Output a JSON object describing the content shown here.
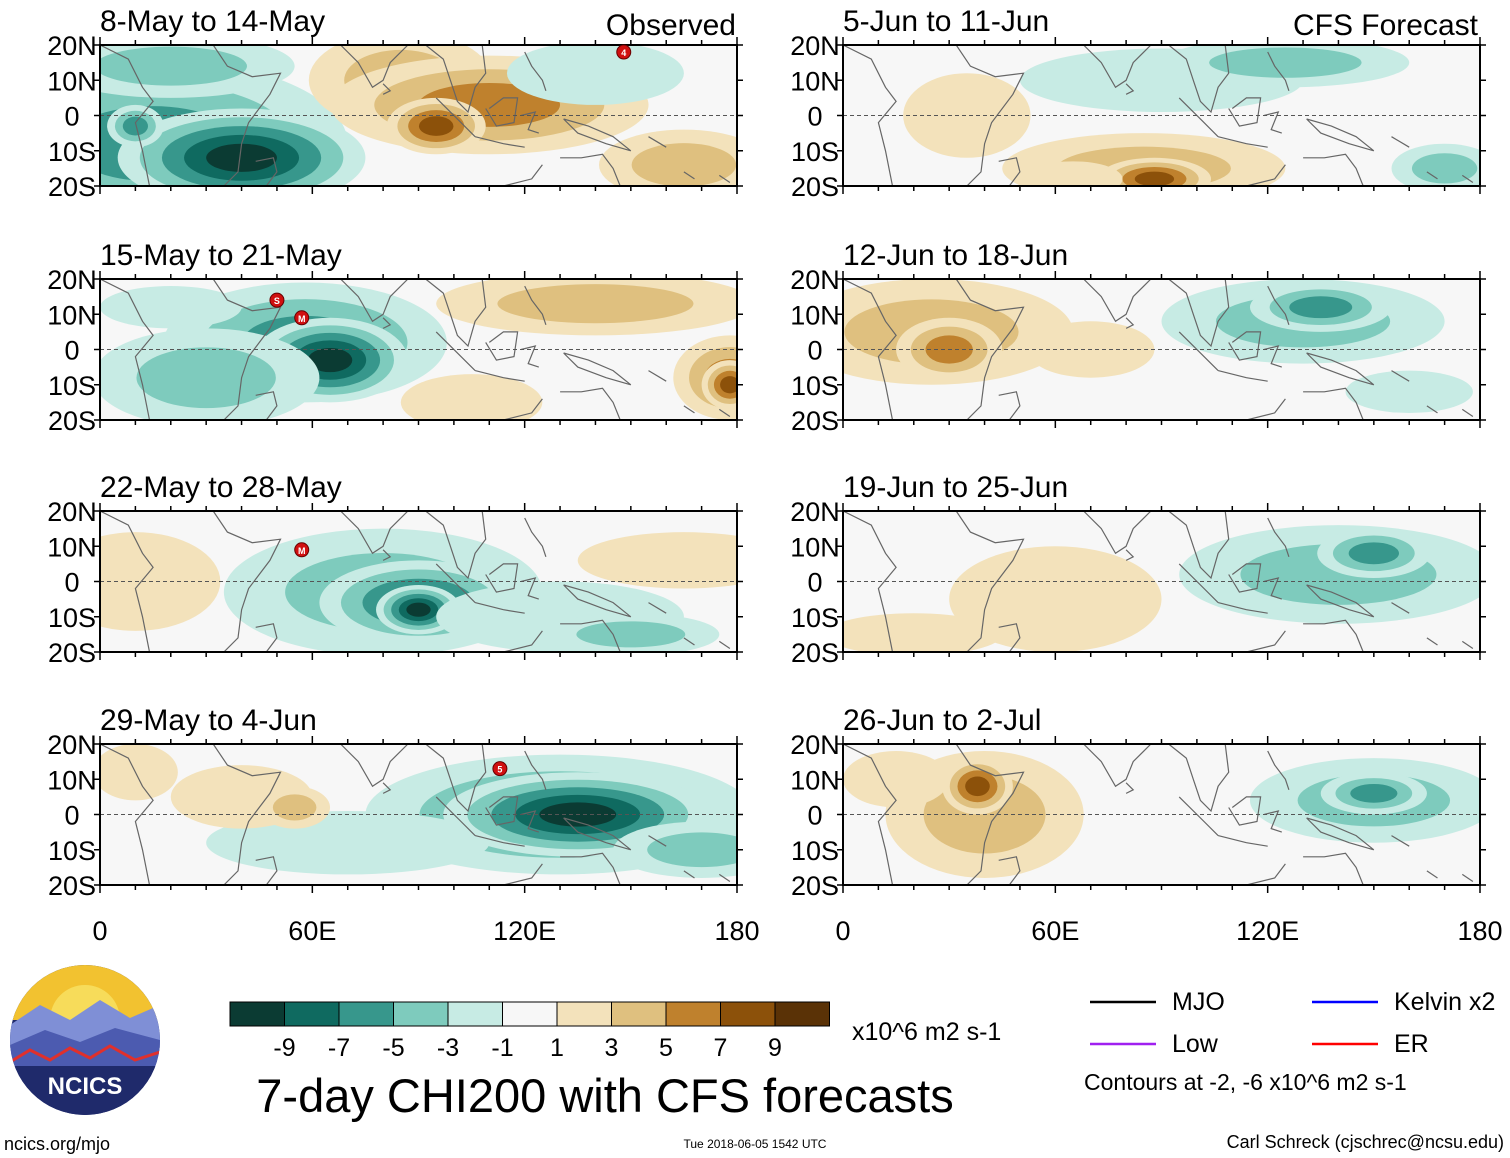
{
  "figure": {
    "title": "7-day CHI200 with CFS forecasts",
    "units": "x10^6 m2 s-1",
    "source_link": "ncics.org/mjo",
    "timestamp": "Tue 2018-06-05 1542 UTC",
    "author": "Carl Schreck (cjschrec@ncsu.edu)",
    "logo_text": "NCICS"
  },
  "headers": {
    "observed": "Observed",
    "forecast": "CFS Forecast"
  },
  "axes": {
    "lat_labels": [
      "20N",
      "10N",
      "0",
      "10S",
      "20S"
    ],
    "lon_labels": [
      "0",
      "60E",
      "120E",
      "180"
    ]
  },
  "colorbar": {
    "colors": [
      "#0b3b33",
      "#0f6a60",
      "#37978c",
      "#7ecbbd",
      "#c7ebe4",
      "#f7f7f7",
      "#f3e2bb",
      "#dfc07f",
      "#bf812d",
      "#8c510a",
      "#5a3206"
    ],
    "labels": [
      "-9",
      "-7",
      "-5",
      "-3",
      "-1",
      "1",
      "3",
      "5",
      "7",
      "9"
    ]
  },
  "legend": {
    "items": [
      {
        "label": "MJO",
        "color": "#000000"
      },
      {
        "label": "Kelvin x2",
        "color": "#0000ff"
      },
      {
        "label": "Low",
        "color": "#a020f0"
      },
      {
        "label": "ER",
        "color": "#ff0000"
      }
    ],
    "note": "Contours at -2, -6 x10^6 m2 s-1"
  },
  "panels": [
    {
      "id": "obs-1",
      "column": "observed",
      "row": 0,
      "label": "8-May to 14-May",
      "markers": [
        {
          "text": "4",
          "lon": 148,
          "lat": 18
        }
      ],
      "blobs": [
        [
          15,
          -8,
          55,
          24,
          -6
        ],
        [
          40,
          -12,
          35,
          14,
          -9
        ],
        [
          20,
          14,
          35,
          9,
          -3
        ],
        [
          85,
          10,
          26,
          14,
          4
        ],
        [
          110,
          3,
          45,
          14,
          5
        ],
        [
          95,
          -3,
          14,
          8,
          7
        ],
        [
          165,
          -14,
          24,
          10,
          3
        ],
        [
          140,
          12,
          25,
          9,
          -2
        ],
        [
          10,
          -3,
          8,
          6,
          -6
        ]
      ]
    },
    {
      "id": "obs-2",
      "column": "observed",
      "row": 1,
      "label": "15-May to 21-May",
      "markers": [
        {
          "text": "S",
          "lon": 50,
          "lat": 14
        },
        {
          "text": "M",
          "lon": 57,
          "lat": 9
        }
      ],
      "blobs": [
        [
          58,
          2,
          40,
          17,
          -5
        ],
        [
          65,
          -3,
          22,
          12,
          -9
        ],
        [
          30,
          -8,
          32,
          14,
          -3
        ],
        [
          140,
          13,
          45,
          9,
          3
        ],
        [
          178,
          -8,
          16,
          12,
          5
        ],
        [
          178,
          -10,
          8,
          7,
          7
        ],
        [
          20,
          12,
          20,
          6,
          -1
        ],
        [
          105,
          -15,
          20,
          8,
          2
        ]
      ]
    },
    {
      "id": "obs-3",
      "column": "observed",
      "row": 2,
      "label": "22-May to 28-May",
      "markers": [
        {
          "text": "M",
          "lon": 57,
          "lat": 9
        }
      ],
      "blobs": [
        [
          80,
          -3,
          45,
          18,
          -4
        ],
        [
          90,
          -6,
          28,
          12,
          -7
        ],
        [
          90,
          -8,
          12,
          7,
          -9
        ],
        [
          130,
          -10,
          35,
          10,
          -2
        ],
        [
          10,
          0,
          24,
          14,
          2
        ],
        [
          165,
          6,
          30,
          8,
          2
        ],
        [
          150,
          -15,
          25,
          6,
          -3
        ]
      ]
    },
    {
      "id": "obs-4",
      "column": "observed",
      "row": 3,
      "label": "29-May to 4-Jun",
      "markers": [
        {
          "text": "5",
          "lon": 113,
          "lat": 13
        }
      ],
      "blobs": [
        [
          130,
          0,
          55,
          17,
          -6
        ],
        [
          135,
          0,
          38,
          12,
          -9
        ],
        [
          70,
          -8,
          40,
          9,
          -2
        ],
        [
          40,
          5,
          20,
          9,
          2
        ],
        [
          55,
          2,
          10,
          6,
          4
        ],
        [
          10,
          12,
          12,
          8,
          2
        ],
        [
          170,
          -10,
          25,
          8,
          -3
        ]
      ]
    },
    {
      "id": "fcst-1",
      "column": "forecast",
      "row": 0,
      "label": "5-Jun to 11-Jun",
      "markers": [],
      "blobs": [
        [
          85,
          -15,
          40,
          10,
          4
        ],
        [
          88,
          -18,
          16,
          6,
          7
        ],
        [
          35,
          0,
          18,
          12,
          2
        ],
        [
          90,
          10,
          40,
          9,
          -2
        ],
        [
          125,
          15,
          35,
          7,
          -4
        ],
        [
          65,
          -18,
          14,
          5,
          2
        ],
        [
          170,
          -15,
          15,
          7,
          -3
        ]
      ]
    },
    {
      "id": "fcst-2",
      "column": "forecast",
      "row": 1,
      "label": "12-Jun to 18-Jun",
      "markers": [],
      "blobs": [
        [
          25,
          5,
          40,
          15,
          3
        ],
        [
          30,
          0,
          15,
          9,
          5
        ],
        [
          130,
          8,
          40,
          12,
          -3
        ],
        [
          135,
          12,
          20,
          7,
          -6
        ],
        [
          70,
          0,
          18,
          8,
          2
        ],
        [
          160,
          -12,
          18,
          6,
          -2
        ]
      ]
    },
    {
      "id": "fcst-3",
      "column": "forecast",
      "row": 2,
      "label": "19-Jun to 25-Jun",
      "markers": [],
      "blobs": [
        [
          60,
          -5,
          30,
          15,
          2
        ],
        [
          140,
          2,
          45,
          14,
          -3
        ],
        [
          150,
          8,
          16,
          7,
          -6
        ],
        [
          20,
          -15,
          25,
          6,
          2
        ]
      ]
    },
    {
      "id": "fcst-4",
      "column": "forecast",
      "row": 3,
      "label": "26-Jun to 2-Jul",
      "markers": [],
      "blobs": [
        [
          40,
          0,
          28,
          18,
          4
        ],
        [
          38,
          8,
          10,
          8,
          7
        ],
        [
          150,
          4,
          35,
          12,
          -4
        ],
        [
          150,
          6,
          15,
          6,
          -6
        ],
        [
          15,
          10,
          15,
          8,
          2
        ]
      ]
    }
  ]
}
